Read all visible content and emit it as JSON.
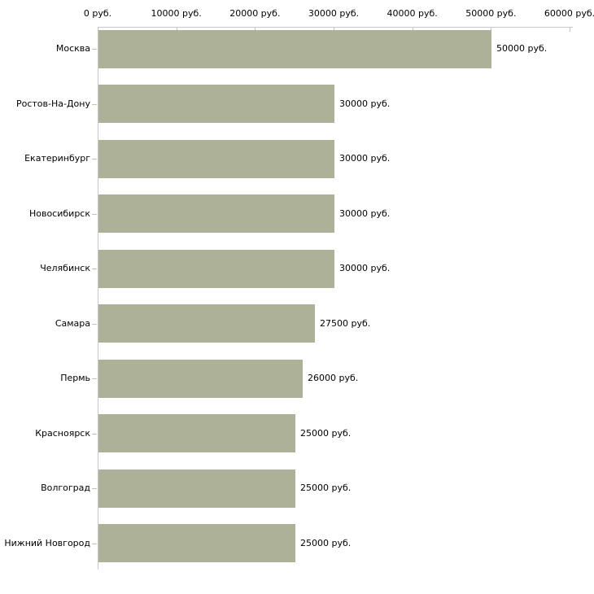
{
  "chart_data": {
    "type": "bar",
    "orientation": "horizontal",
    "title": "",
    "xlabel": "",
    "ylabel": "",
    "categories": [
      "Москва",
      "Ростов-На-Дону",
      "Екатеринбург",
      "Новосибирск",
      "Челябинск",
      "Самара",
      "Пермь",
      "Красноярск",
      "Волгоград",
      "Нижний Новгород"
    ],
    "values": [
      50000,
      30000,
      30000,
      30000,
      30000,
      27500,
      26000,
      25000,
      25000,
      25000
    ],
    "value_labels": [
      "50000 руб.",
      "30000 руб.",
      "30000 руб.",
      "30000 руб.",
      "30000 руб.",
      "27500 руб.",
      "26000 руб.",
      "25000 руб.",
      "25000 руб.",
      "25000 руб."
    ],
    "x_axis": {
      "position": "top",
      "min": 0,
      "max": 60000,
      "tick_step": 10000,
      "tick_values": [
        0,
        10000,
        20000,
        30000,
        40000,
        50000,
        60000
      ],
      "tick_labels": [
        "0 руб.",
        "10000 руб.",
        "20000 руб.",
        "30000 руб.",
        "40000 руб.",
        "50000 руб.",
        "60000 руб."
      ]
    },
    "xlim": [
      0,
      60000
    ],
    "grid": false,
    "legend": false,
    "colors": {
      "bar": "#acb198",
      "axis_line": "#c8c8c8",
      "tick_mark": "#c2c3ac",
      "text": "#000000",
      "background": "#ffffff"
    }
  }
}
